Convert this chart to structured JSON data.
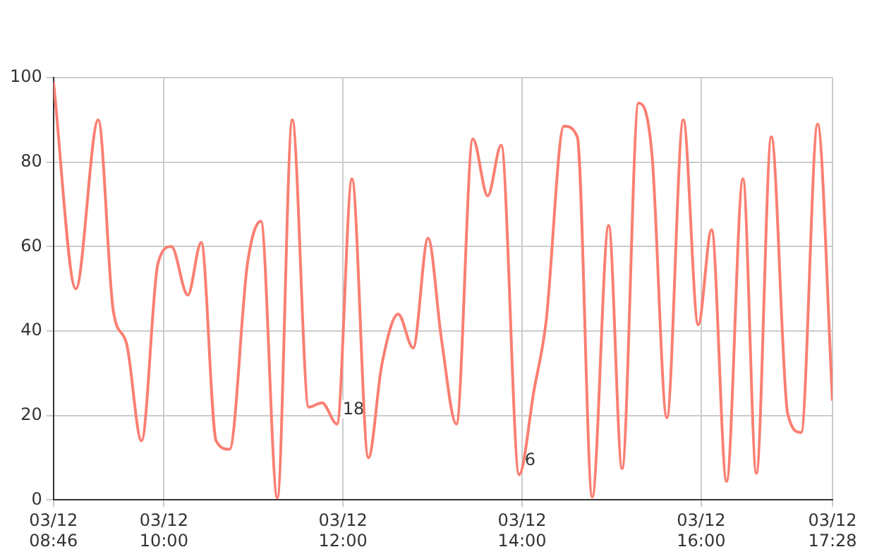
{
  "chart_data": {
    "type": "line",
    "x": [
      "--03-12T08:46",
      "--03-12T09:01",
      "--03-12T09:16",
      "--03-12T09:26",
      "--03-12T09:35",
      "--03-12T09:45",
      "--03-12T09:56",
      "--03-12T10:05",
      "--03-12T10:16",
      "--03-12T10:25",
      "--03-12T10:35",
      "--03-12T10:44",
      "--03-12T10:56",
      "--03-12T11:05",
      "--03-12T11:16",
      "--03-12T11:26",
      "--03-12T11:37",
      "--03-12T11:46",
      "--03-12T11:56",
      "--03-12T12:06",
      "--03-12T12:17",
      "--03-12T12:26",
      "--03-12T12:37",
      "--03-12T12:47",
      "--03-12T12:57",
      "--03-12T13:06",
      "--03-12T13:16",
      "--03-12T13:27",
      "--03-12T13:37",
      "--03-12T13:46",
      "--03-12T13:58",
      "--03-12T14:08",
      "--03-12T14:16",
      "--03-12T14:28",
      "--03-12T14:37",
      "--03-12T14:47",
      "--03-12T14:58",
      "--03-12T15:07",
      "--03-12T15:18",
      "--03-12T15:27",
      "--03-12T15:37",
      "--03-12T15:48",
      "--03-12T15:58",
      "--03-12T16:07",
      "--03-12T16:17",
      "--03-12T16:28",
      "--03-12T16:37",
      "--03-12T16:47",
      "--03-12T16:58",
      "--03-12T17:07",
      "--03-12T17:18",
      "--03-12T17:28"
    ],
    "series": [
      {
        "color": "#fa7f72",
        "values": [
          99,
          50,
          90,
          45,
          37,
          14,
          56,
          60,
          48.5,
          61,
          14,
          12,
          56,
          66,
          0.5,
          90,
          22,
          23,
          18,
          76,
          10,
          32,
          44,
          36,
          62,
          38,
          18,
          85.5,
          72,
          84,
          6,
          26,
          42,
          88.5,
          86,
          0.7,
          65,
          7.4,
          94,
          82,
          19.5,
          90,
          41.5,
          64,
          4.4,
          76,
          6.3,
          86,
          20.4,
          16,
          89,
          23.5
        ]
      }
    ],
    "annotations": [
      {
        "text": "18",
        "x": "--03-12T11:56",
        "y": 18
      },
      {
        "text": "6",
        "x": "--03-12T13:58",
        "y": 6
      }
    ],
    "xlim": [
      "--03-12T08:46",
      "--03-12T17:28"
    ],
    "xticks": [
      {
        "value": "--03-12T08:46",
        "label": "03/12\n08:46"
      },
      {
        "value": "--03-12T10:00",
        "label": "03/12\n10:00"
      },
      {
        "value": "--03-12T12:00",
        "label": "03/12\n12:00"
      },
      {
        "value": "--03-12T14:00",
        "label": "03/12\n14:00"
      },
      {
        "value": "--03-12T16:00",
        "label": "03/12\n16:00"
      },
      {
        "value": "--03-12T17:28",
        "label": "03/12\n17:28"
      }
    ],
    "ylim": [
      0,
      100
    ],
    "yticks": [
      0,
      20,
      40,
      60,
      80,
      100
    ],
    "grid": true,
    "legend": false,
    "marker": "none",
    "line_style": "solid"
  }
}
